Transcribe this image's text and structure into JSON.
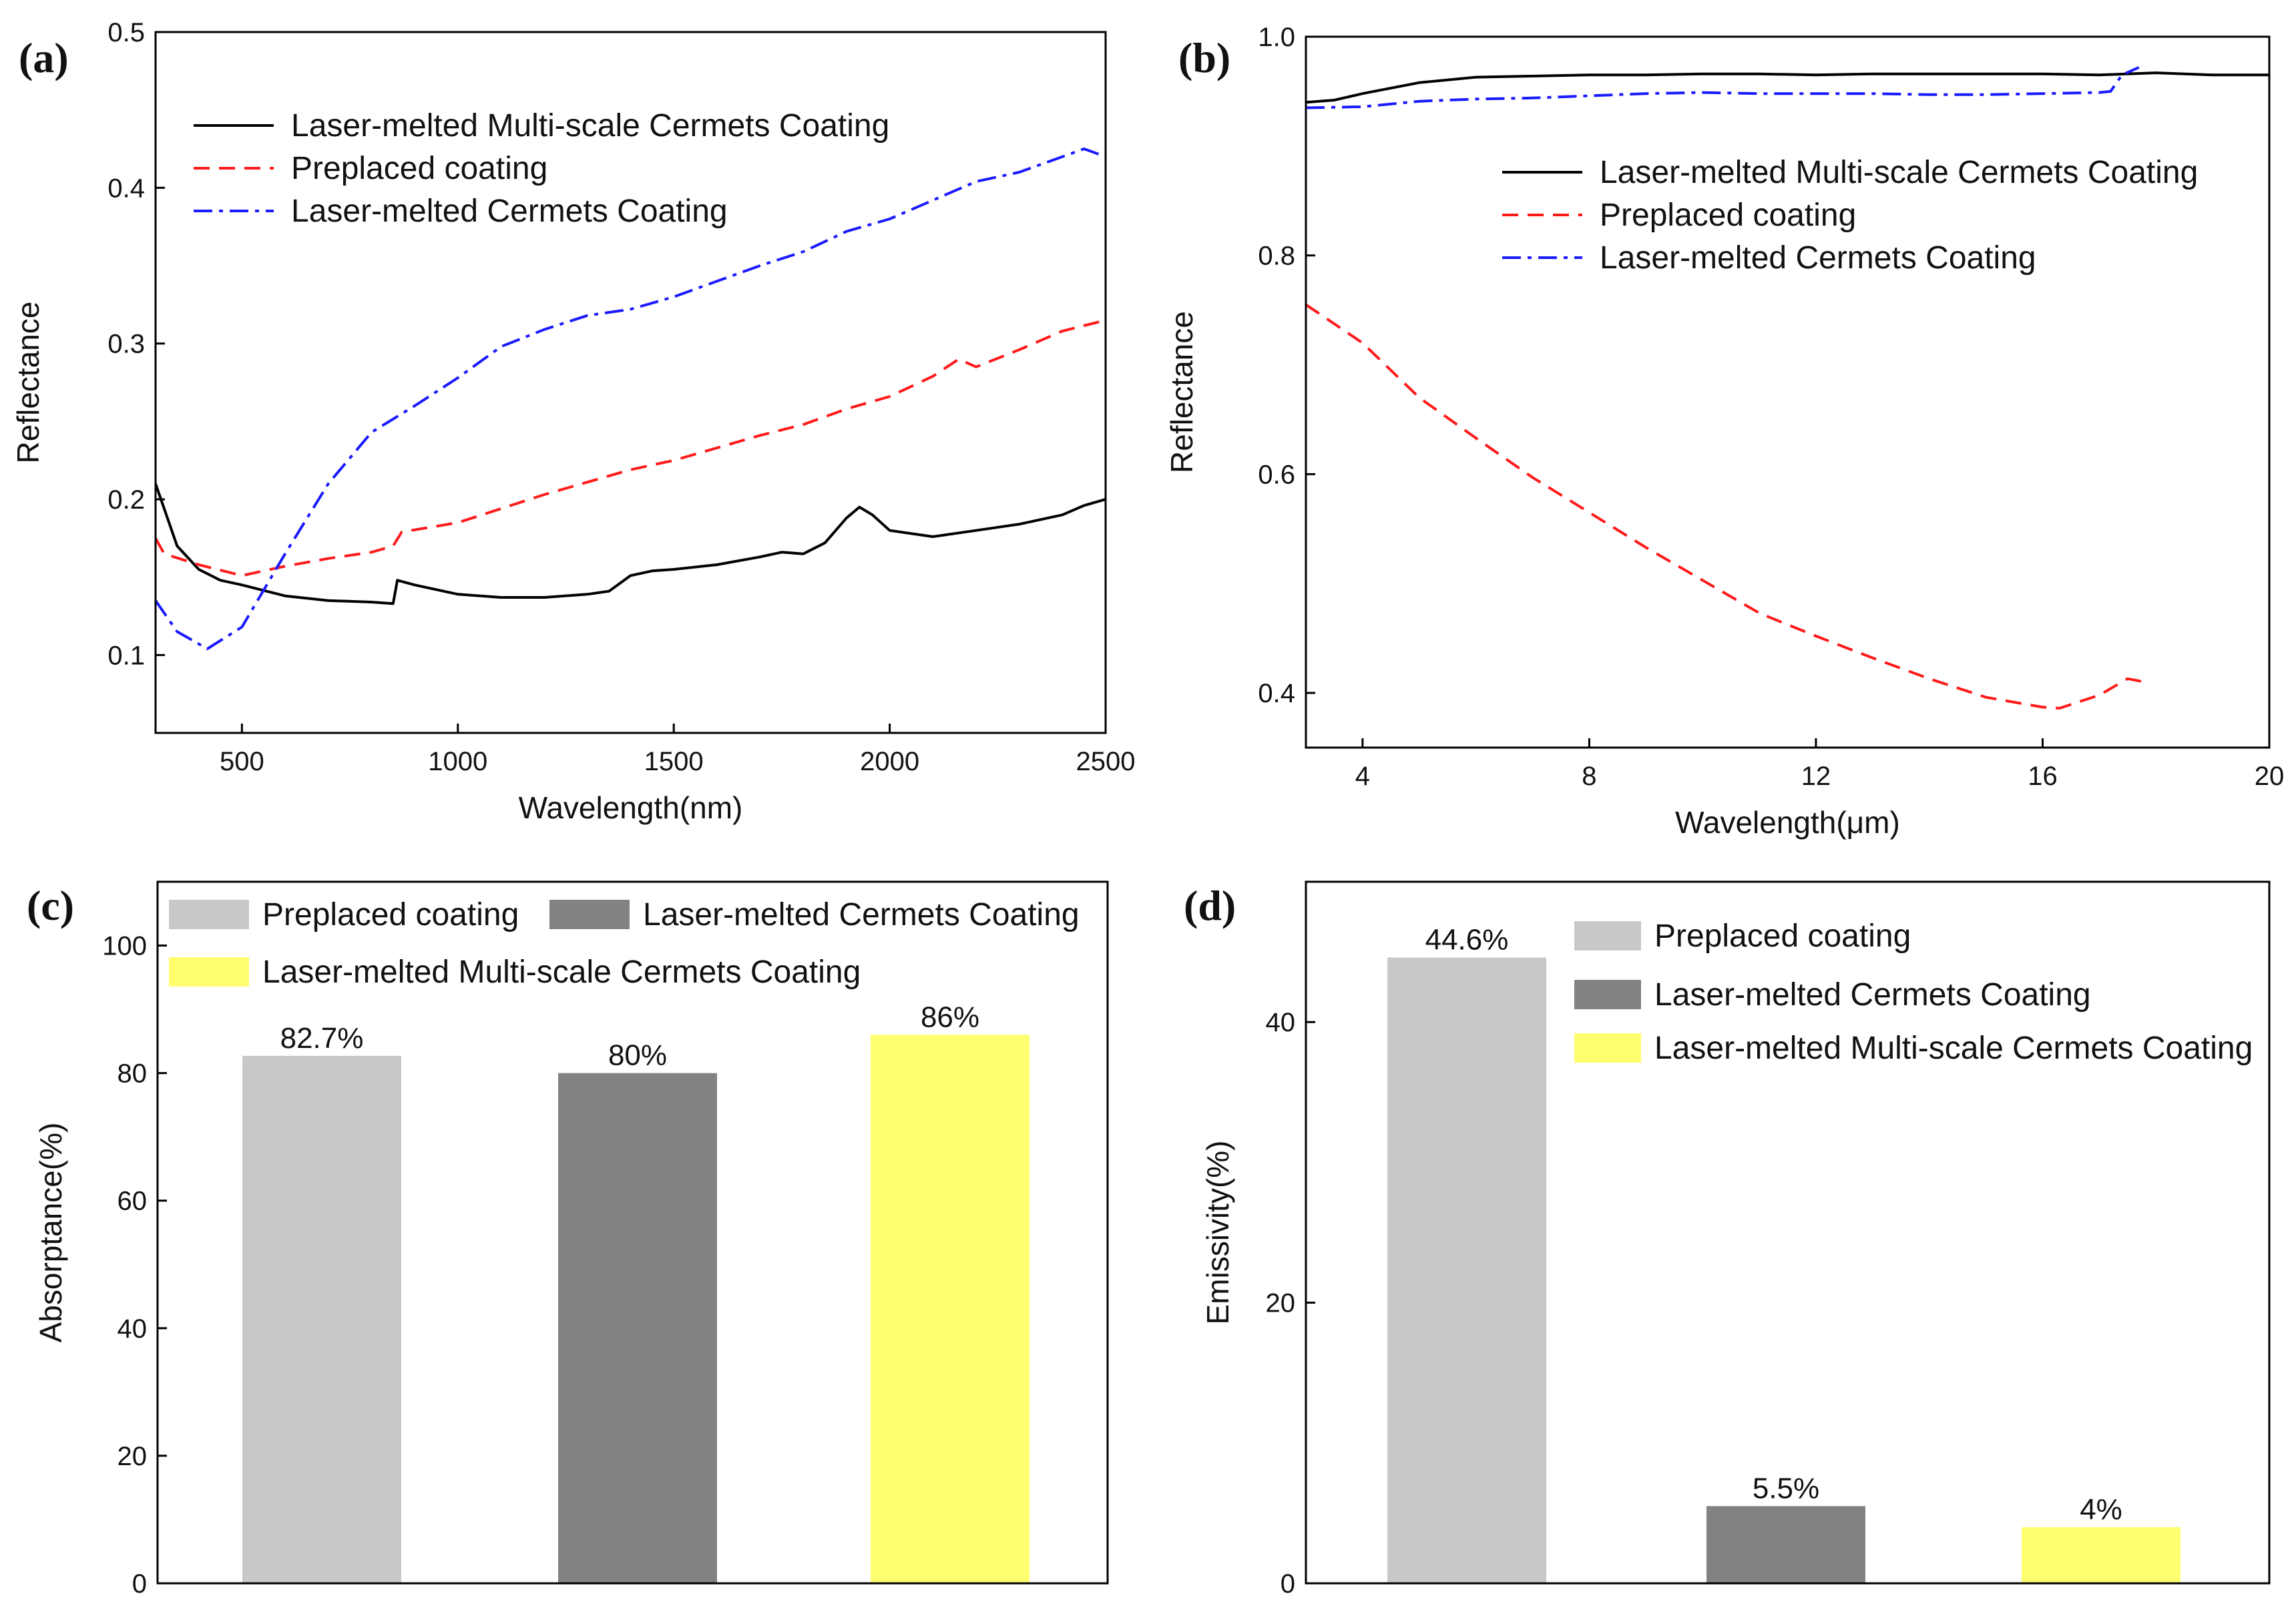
{
  "chart_data": [
    {
      "id": "a",
      "panel_label": "(a)",
      "type": "line",
      "xlabel": "Wavelength(nm)",
      "ylabel": "Reflectance",
      "xlim": [
        300,
        2500
      ],
      "ylim": [
        0.05,
        0.5
      ],
      "xticks": [
        500,
        1000,
        1500,
        2000,
        2500
      ],
      "xtick_labels": [
        "500",
        "1000",
        "1500",
        "2000",
        "2500"
      ],
      "yticks": [
        0.1,
        0.2,
        0.3,
        0.4,
        0.5
      ],
      "ytick_labels": [
        "0.1",
        "0.2",
        "0.3",
        "0.4",
        "0.5"
      ],
      "legend_position": "top-left",
      "series": [
        {
          "name": "Laser-melted Multi-scale  Cermets Coating",
          "color": "#000000",
          "dash": "solid",
          "points": [
            [
              300,
              0.21
            ],
            [
              350,
              0.17
            ],
            [
              400,
              0.155
            ],
            [
              450,
              0.148
            ],
            [
              500,
              0.145
            ],
            [
              600,
              0.138
            ],
            [
              700,
              0.135
            ],
            [
              800,
              0.134
            ],
            [
              850,
              0.133
            ],
            [
              860,
              0.148
            ],
            [
              900,
              0.145
            ],
            [
              1000,
              0.139
            ],
            [
              1100,
              0.137
            ],
            [
              1200,
              0.137
            ],
            [
              1300,
              0.139
            ],
            [
              1350,
              0.141
            ],
            [
              1400,
              0.151
            ],
            [
              1450,
              0.154
            ],
            [
              1500,
              0.155
            ],
            [
              1600,
              0.158
            ],
            [
              1700,
              0.163
            ],
            [
              1750,
              0.166
            ],
            [
              1800,
              0.165
            ],
            [
              1850,
              0.172
            ],
            [
              1900,
              0.188
            ],
            [
              1930,
              0.195
            ],
            [
              1960,
              0.19
            ],
            [
              2000,
              0.18
            ],
            [
              2100,
              0.176
            ],
            [
              2200,
              0.18
            ],
            [
              2300,
              0.184
            ],
            [
              2400,
              0.19
            ],
            [
              2450,
              0.196
            ],
            [
              2500,
              0.2
            ]
          ]
        },
        {
          "name": "Preplaced coating",
          "color": "#ff1a1a",
          "dash": "dashed",
          "points": [
            [
              300,
              0.175
            ],
            [
              320,
              0.165
            ],
            [
              400,
              0.158
            ],
            [
              500,
              0.151
            ],
            [
              600,
              0.157
            ],
            [
              700,
              0.162
            ],
            [
              800,
              0.166
            ],
            [
              850,
              0.17
            ],
            [
              870,
              0.179
            ],
            [
              1000,
              0.185
            ],
            [
              1100,
              0.194
            ],
            [
              1200,
              0.203
            ],
            [
              1300,
              0.211
            ],
            [
              1400,
              0.219
            ],
            [
              1500,
              0.225
            ],
            [
              1600,
              0.233
            ],
            [
              1700,
              0.241
            ],
            [
              1800,
              0.248
            ],
            [
              1900,
              0.258
            ],
            [
              2000,
              0.266
            ],
            [
              2100,
              0.279
            ],
            [
              2160,
              0.29
            ],
            [
              2200,
              0.285
            ],
            [
              2300,
              0.296
            ],
            [
              2400,
              0.308
            ],
            [
              2500,
              0.315
            ]
          ]
        },
        {
          "name": "Laser-melted Cermets Coating",
          "color": "#1a1aff",
          "dash": "dashdot",
          "points": [
            [
              300,
              0.135
            ],
            [
              350,
              0.115
            ],
            [
              420,
              0.104
            ],
            [
              500,
              0.118
            ],
            [
              600,
              0.165
            ],
            [
              700,
              0.21
            ],
            [
              800,
              0.243
            ],
            [
              900,
              0.26
            ],
            [
              1000,
              0.278
            ],
            [
              1100,
              0.298
            ],
            [
              1200,
              0.309
            ],
            [
              1300,
              0.318
            ],
            [
              1400,
              0.322
            ],
            [
              1500,
              0.33
            ],
            [
              1600,
              0.34
            ],
            [
              1700,
              0.35
            ],
            [
              1800,
              0.359
            ],
            [
              1900,
              0.372
            ],
            [
              2000,
              0.38
            ],
            [
              2100,
              0.392
            ],
            [
              2200,
              0.404
            ],
            [
              2300,
              0.41
            ],
            [
              2400,
              0.42
            ],
            [
              2450,
              0.425
            ],
            [
              2500,
              0.42
            ]
          ]
        }
      ]
    },
    {
      "id": "b",
      "panel_label": "(b)",
      "type": "line",
      "xlabel": "Wavelength(μm)",
      "ylabel": "Reflectance",
      "xlim": [
        3,
        20
      ],
      "ylim": [
        0.35,
        1.0
      ],
      "xticks": [
        4,
        8,
        12,
        16,
        20
      ],
      "xtick_labels": [
        "4",
        "8",
        "12",
        "16",
        "20"
      ],
      "yticks": [
        0.4,
        0.6,
        0.8,
        1.0
      ],
      "ytick_labels": [
        "0.4",
        "0.6",
        "0.8",
        "1.0"
      ],
      "legend_position": "top-right",
      "series": [
        {
          "name": "Laser-melted Multi-scale  Cermets Coating",
          "color": "#000000",
          "dash": "solid",
          "points": [
            [
              3,
              0.94
            ],
            [
              3.5,
              0.942
            ],
            [
              4,
              0.948
            ],
            [
              5,
              0.958
            ],
            [
              6,
              0.963
            ],
            [
              7,
              0.964
            ],
            [
              8,
              0.965
            ],
            [
              9,
              0.965
            ],
            [
              10,
              0.966
            ],
            [
              11,
              0.966
            ],
            [
              12,
              0.965
            ],
            [
              13,
              0.966
            ],
            [
              14,
              0.966
            ],
            [
              15,
              0.966
            ],
            [
              16,
              0.966
            ],
            [
              17,
              0.965
            ],
            [
              18,
              0.967
            ],
            [
              19,
              0.965
            ],
            [
              20,
              0.965
            ]
          ]
        },
        {
          "name": "Preplaced coating",
          "color": "#ff1a1a",
          "dash": "dashed",
          "points": [
            [
              3,
              0.755
            ],
            [
              4,
              0.72
            ],
            [
              5,
              0.67
            ],
            [
              6,
              0.633
            ],
            [
              7,
              0.597
            ],
            [
              8,
              0.565
            ],
            [
              9,
              0.533
            ],
            [
              10,
              0.503
            ],
            [
              11,
              0.473
            ],
            [
              12,
              0.452
            ],
            [
              13,
              0.432
            ],
            [
              14,
              0.413
            ],
            [
              15,
              0.396
            ],
            [
              16,
              0.387
            ],
            [
              16.3,
              0.386
            ],
            [
              17,
              0.398
            ],
            [
              17.5,
              0.413
            ],
            [
              17.8,
              0.41
            ]
          ]
        },
        {
          "name": "Laser-melted Cermets Coating",
          "color": "#1a1aff",
          "dash": "dashdot",
          "points": [
            [
              3,
              0.935
            ],
            [
              4,
              0.936
            ],
            [
              5,
              0.941
            ],
            [
              6,
              0.943
            ],
            [
              7,
              0.944
            ],
            [
              8,
              0.946
            ],
            [
              9,
              0.948
            ],
            [
              10,
              0.949
            ],
            [
              11,
              0.948
            ],
            [
              12,
              0.948
            ],
            [
              13,
              0.948
            ],
            [
              14,
              0.947
            ],
            [
              15,
              0.947
            ],
            [
              16,
              0.948
            ],
            [
              17,
              0.949
            ],
            [
              17.2,
              0.95
            ],
            [
              17.4,
              0.965
            ],
            [
              17.7,
              0.972
            ]
          ]
        }
      ]
    },
    {
      "id": "c",
      "panel_label": "(c)",
      "type": "bar",
      "xlabel": "",
      "ylabel": "Absorptance(%)",
      "ylim": [
        0,
        110
      ],
      "yticks": [
        0,
        20,
        40,
        60,
        80,
        100
      ],
      "ytick_labels": [
        "0",
        "20",
        "40",
        "60",
        "80",
        "100"
      ],
      "legend_position": "top",
      "categories": [
        "Preplaced coating",
        "Laser-melted Cermets Coating",
        "Laser-melted Multi-scale  Cermets Coating"
      ],
      "values": [
        82.7,
        80,
        86
      ],
      "value_labels": [
        "82.7%",
        "80%",
        "86%"
      ],
      "colors": [
        "#c8c8c8",
        "#828282",
        "#ffff70"
      ]
    },
    {
      "id": "d",
      "panel_label": "(d)",
      "type": "bar",
      "xlabel": "",
      "ylabel": "Emissivity(%)",
      "ylim": [
        0,
        50
      ],
      "yticks": [
        0,
        20,
        40
      ],
      "ytick_labels": [
        "0",
        "20",
        "40"
      ],
      "legend_position": "top-right",
      "categories": [
        "Preplaced coating",
        "Laser-melted Cermets Coating",
        "Laser-melted Multi-scale  Cermets Coating"
      ],
      "values": [
        44.6,
        5.5,
        4
      ],
      "value_labels": [
        "44.6%",
        "5.5%",
        "4%"
      ],
      "colors": [
        "#c8c8c8",
        "#828282",
        "#ffff70"
      ]
    }
  ]
}
